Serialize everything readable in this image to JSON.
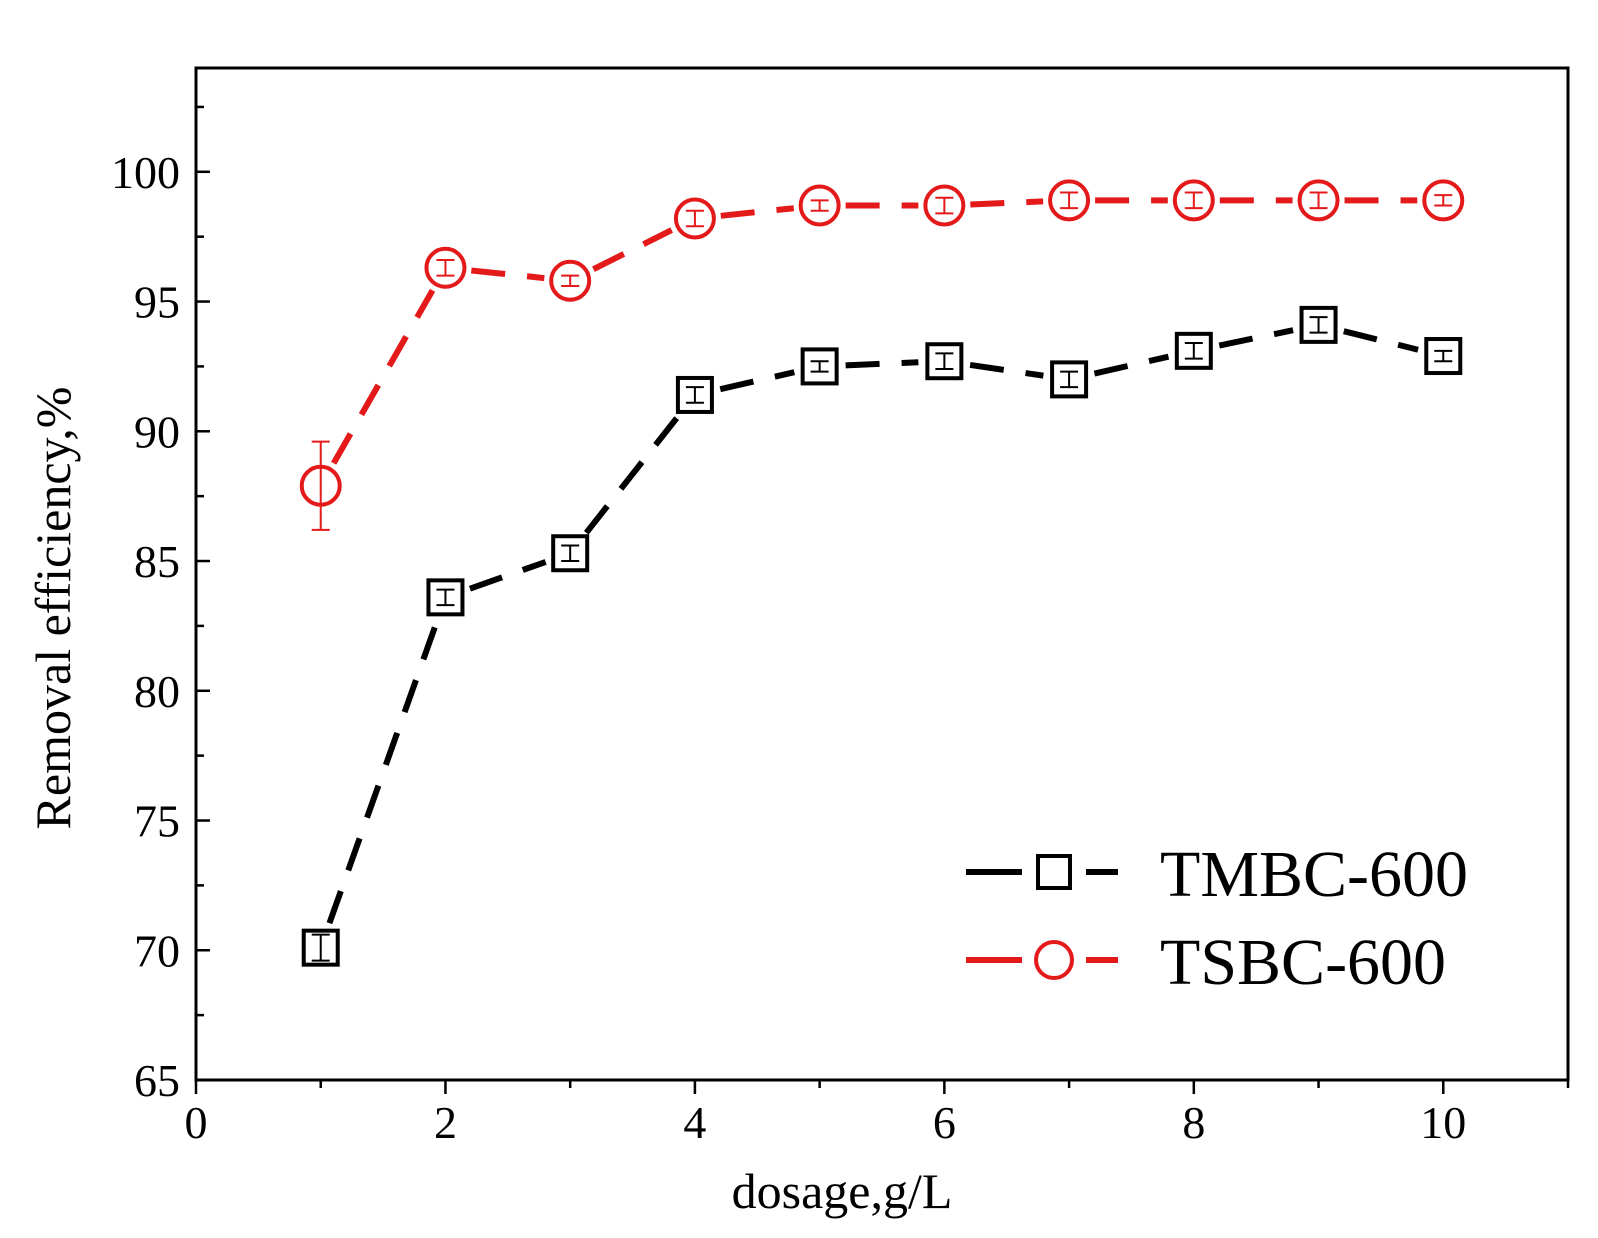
{
  "chart_data": {
    "type": "line",
    "xlabel": "dosage,g/L",
    "ylabel": "Removal efficiency,%",
    "xlim": [
      0,
      11
    ],
    "ylim": [
      65,
      104
    ],
    "x_ticks": [
      0,
      2,
      4,
      6,
      8,
      10
    ],
    "y_ticks": [
      65,
      70,
      75,
      80,
      85,
      90,
      95,
      100
    ],
    "grid": false,
    "legend_position": "bottom-right",
    "x": [
      1,
      2,
      3,
      4,
      5,
      6,
      7,
      8,
      9,
      10
    ],
    "series": [
      {
        "name": "TMBC-600",
        "marker": "square",
        "line": "dashed",
        "color": "#000000",
        "values": [
          70.1,
          83.6,
          85.3,
          91.4,
          92.5,
          92.7,
          92.0,
          93.1,
          94.1,
          92.9
        ],
        "errors": [
          0.5,
          0.3,
          0.3,
          0.3,
          0.2,
          0.3,
          0.3,
          0.3,
          0.3,
          0.2
        ]
      },
      {
        "name": "TSBC-600",
        "marker": "circle",
        "line": "dashed",
        "color": "#e41a1a",
        "values": [
          87.9,
          96.3,
          95.8,
          98.2,
          98.7,
          98.7,
          98.9,
          98.9,
          98.9,
          98.9
        ],
        "errors": [
          1.7,
          0.3,
          0.2,
          0.3,
          0.2,
          0.3,
          0.3,
          0.3,
          0.3,
          0.2
        ]
      }
    ]
  }
}
